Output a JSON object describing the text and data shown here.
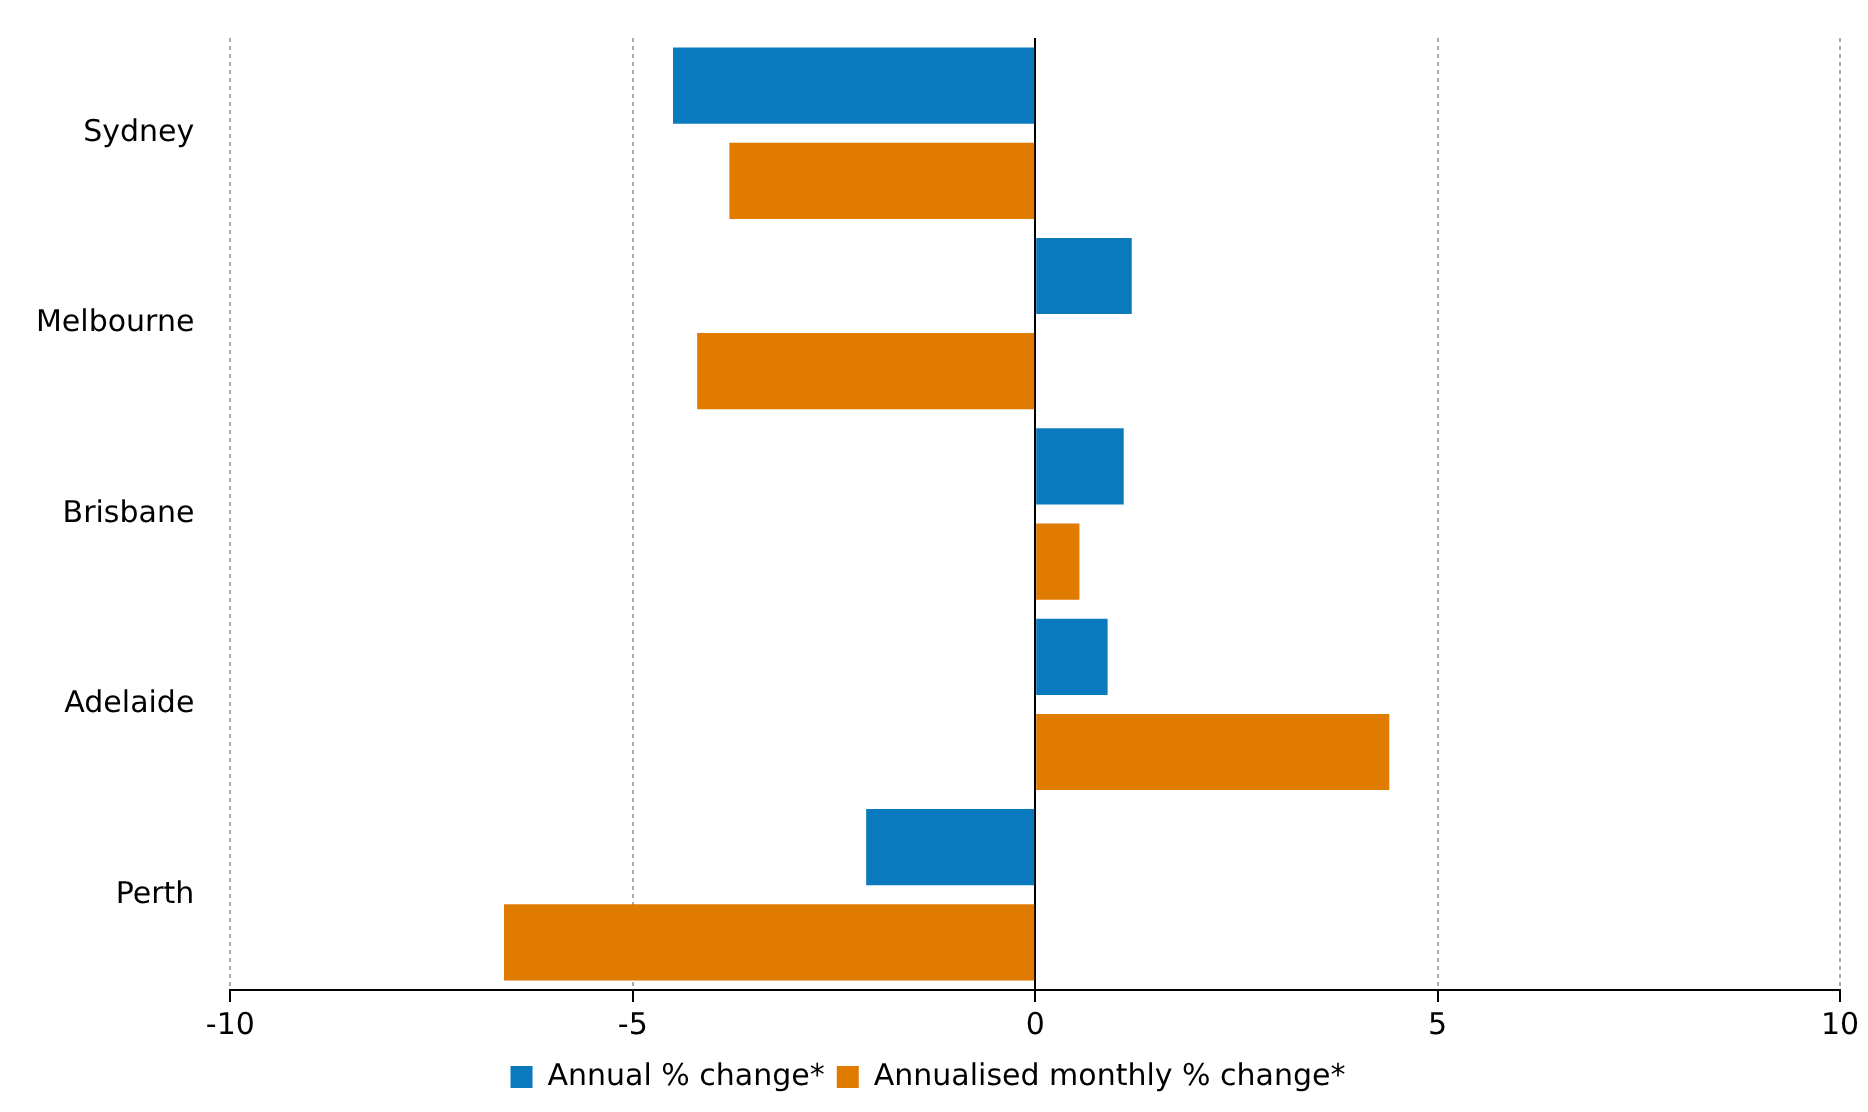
{
  "chart_data": {
    "type": "bar",
    "orientation": "horizontal",
    "categories": [
      "Sydney",
      "Melbourne",
      "Brisbane",
      "Adelaide",
      "Perth"
    ],
    "series": [
      {
        "name": "Annual % change*",
        "color": "#0a7abf",
        "values": [
          -4.5,
          1.2,
          1.1,
          0.9,
          -2.1
        ]
      },
      {
        "name": "Annualised monthly % change*",
        "color": "#e07b00",
        "values": [
          -3.8,
          -4.2,
          0.55,
          4.4,
          -6.6
        ]
      }
    ],
    "xlim": [
      -10,
      10
    ],
    "xticks": [
      -10,
      -5,
      0,
      5,
      10
    ],
    "grid": "x",
    "legend": "bottom"
  }
}
